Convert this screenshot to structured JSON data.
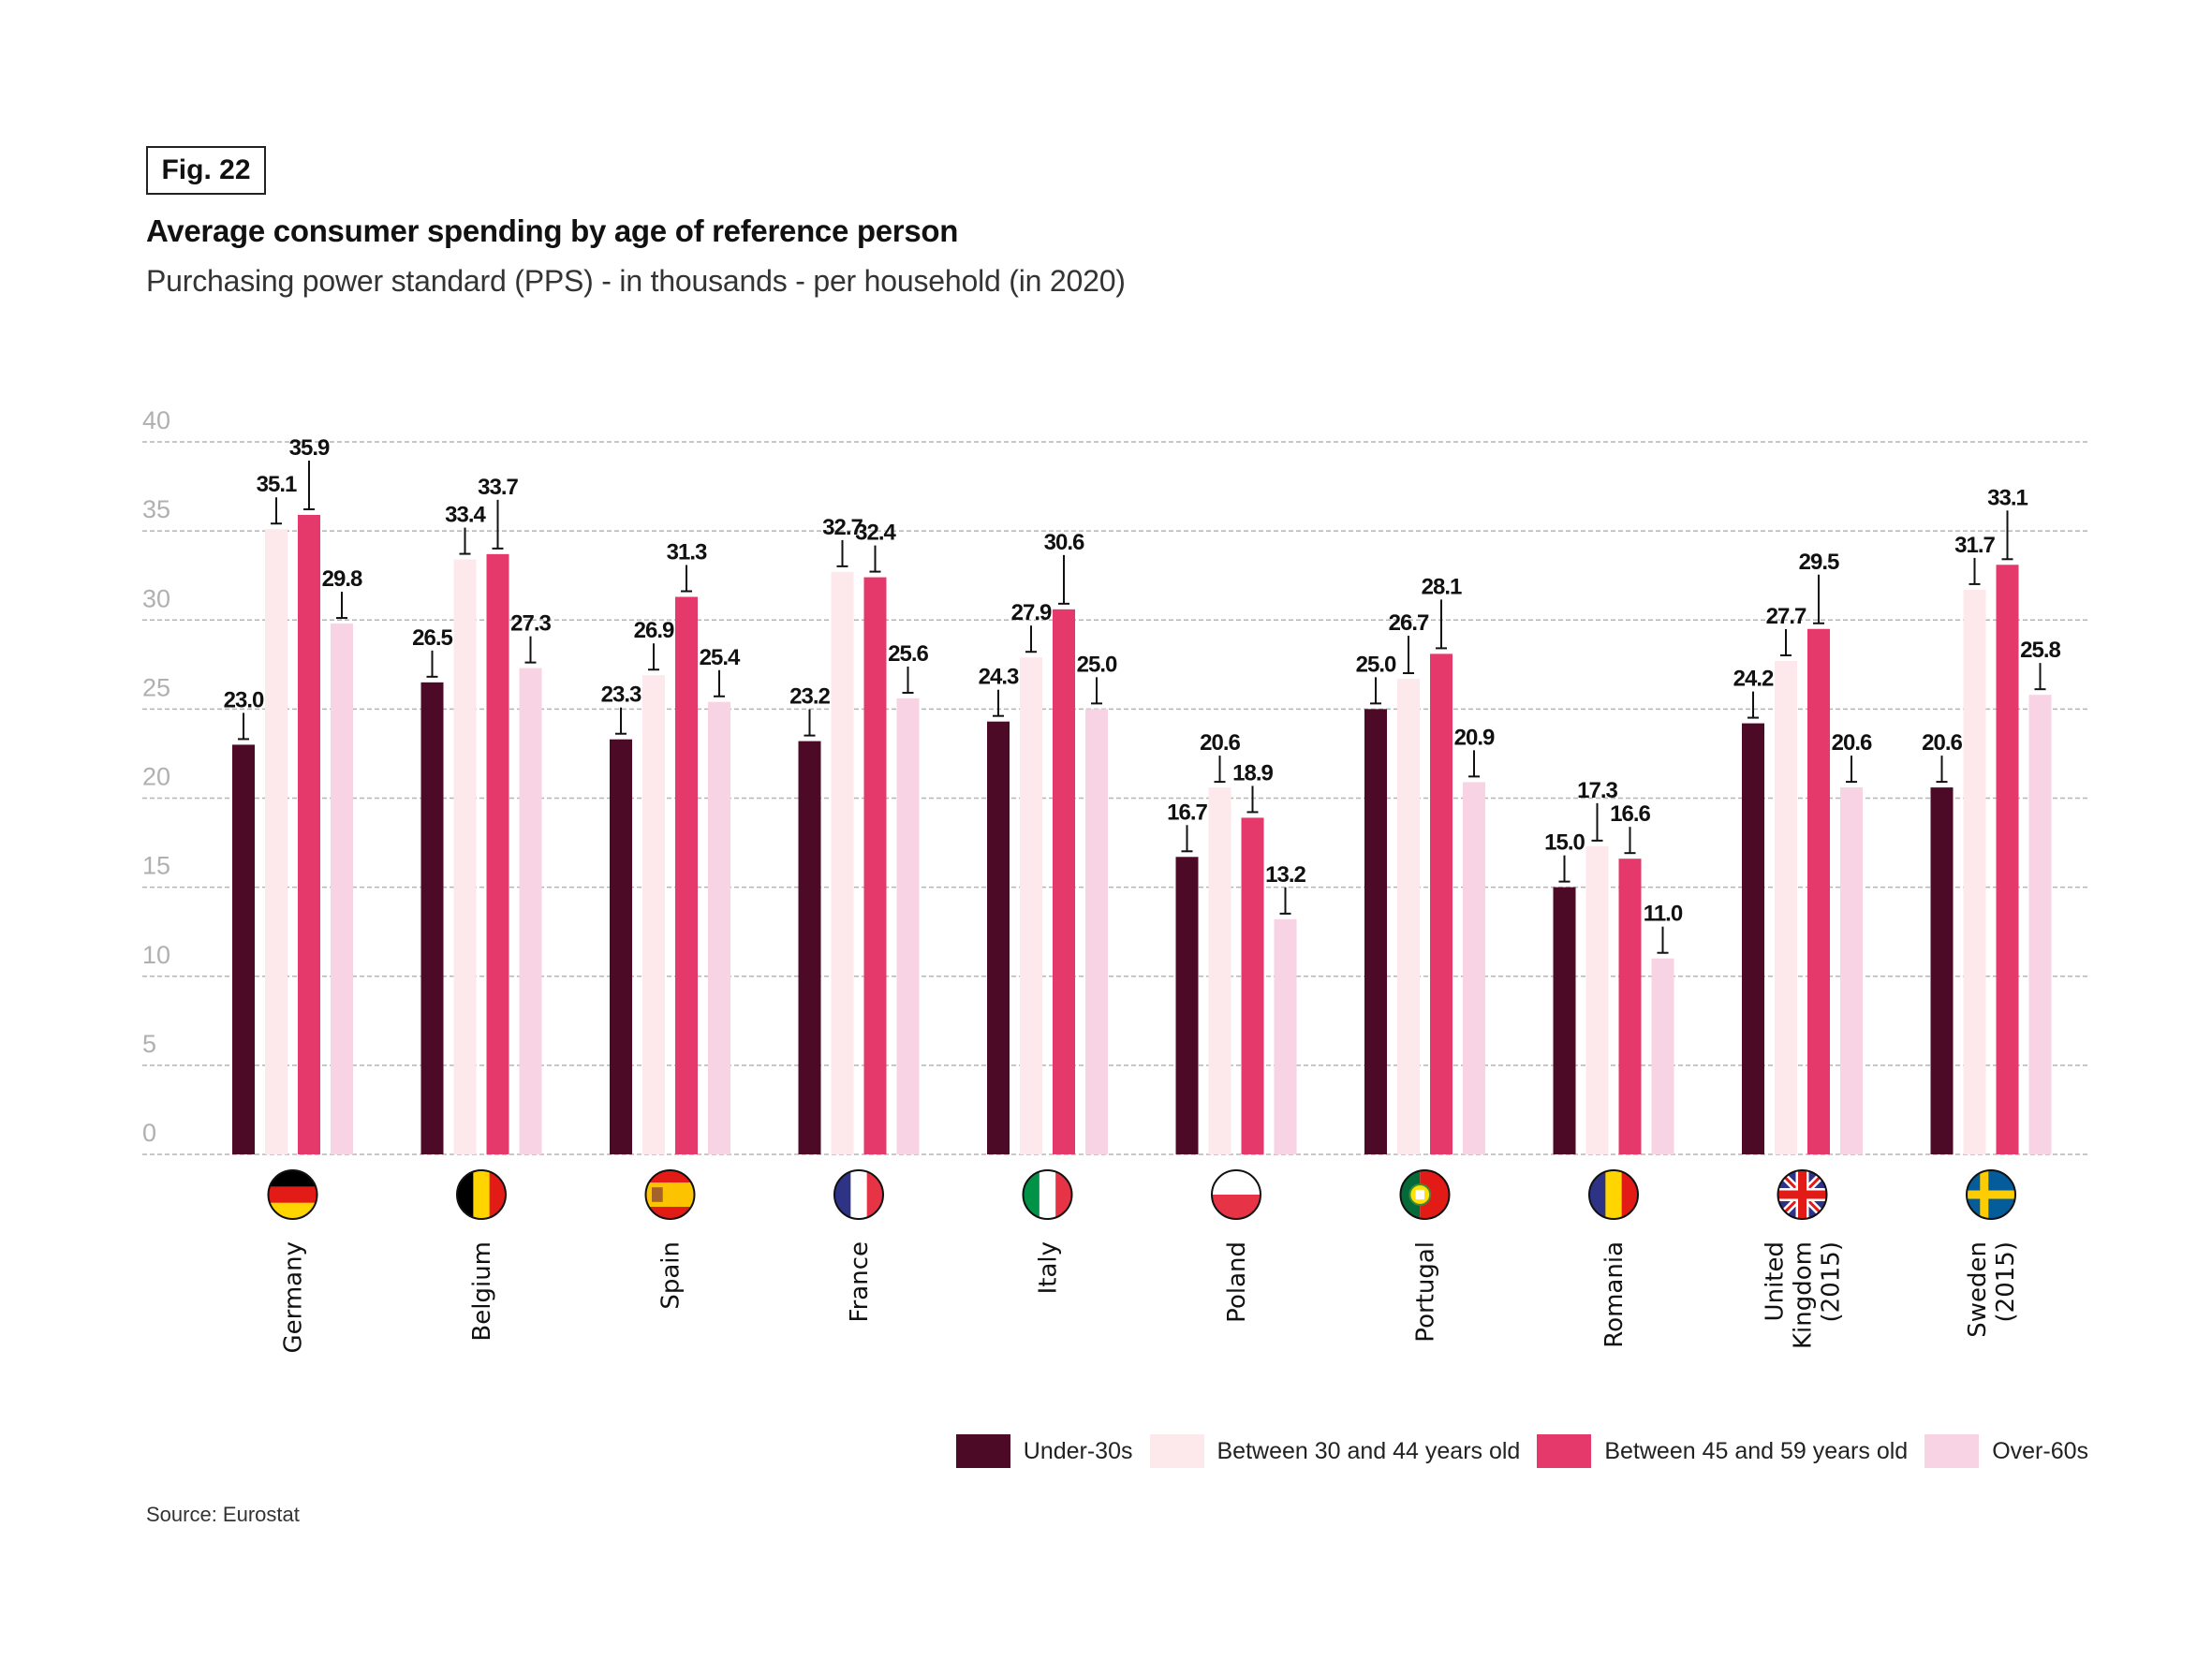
{
  "figure": {
    "label": "Fig. 22",
    "title": "Average consumer spending by age of reference person",
    "subtitle": "Purchasing power standard (PPS) - in thousands - per household (in 2020)",
    "source": "Source: Eurostat"
  },
  "chart_data": {
    "type": "bar",
    "title": "Average consumer spending by age of reference person",
    "subtitle": "Purchasing power standard (PPS) - in thousands - per household (in 2020)",
    "xlabel": "",
    "ylabel": "",
    "ylim": [
      0,
      40
    ],
    "yticks": [
      0,
      5,
      10,
      15,
      20,
      25,
      30,
      35,
      40
    ],
    "grid": true,
    "legend_position": "bottom-right",
    "categories": [
      {
        "label": "Germany",
        "flag": "germany-flag-icon"
      },
      {
        "label": "Belgium",
        "flag": "belgium-flag-icon"
      },
      {
        "label": "Spain",
        "flag": "spain-flag-icon"
      },
      {
        "label": "France",
        "flag": "france-flag-icon"
      },
      {
        "label": "Italy",
        "flag": "italy-flag-icon"
      },
      {
        "label": "Poland",
        "flag": "poland-flag-icon"
      },
      {
        "label": "Portugal",
        "flag": "portugal-flag-icon"
      },
      {
        "label": "Romania",
        "flag": "romania-flag-icon"
      },
      {
        "label": "United Kingdom (2015)",
        "lines": [
          "United",
          "Kingdom",
          "(2015)"
        ],
        "flag": "uk-flag-icon"
      },
      {
        "label": "Sweden (2015)",
        "lines": [
          "Sweden",
          "(2015)"
        ],
        "flag": "sweden-flag-icon"
      }
    ],
    "series": [
      {
        "name": "Under-30s",
        "color": "#4d0a26",
        "values": [
          23.0,
          26.5,
          23.3,
          23.2,
          24.3,
          16.7,
          25.0,
          15.0,
          24.2,
          20.6
        ]
      },
      {
        "name": "Between 30 and 44 years old",
        "color": "#fde9ec",
        "values": [
          35.1,
          33.4,
          26.9,
          32.7,
          27.9,
          20.6,
          26.7,
          17.3,
          27.7,
          31.7
        ]
      },
      {
        "name": "Between 45 and 59 years old",
        "color": "#e5396b",
        "values": [
          35.9,
          33.7,
          31.3,
          32.4,
          30.6,
          18.9,
          28.1,
          16.6,
          29.5,
          33.1
        ]
      },
      {
        "name": "Over-60s",
        "color": "#f7d3e4",
        "values": [
          29.8,
          27.3,
          25.4,
          25.6,
          25.0,
          13.2,
          20.9,
          11.0,
          20.6,
          25.8
        ]
      }
    ]
  }
}
